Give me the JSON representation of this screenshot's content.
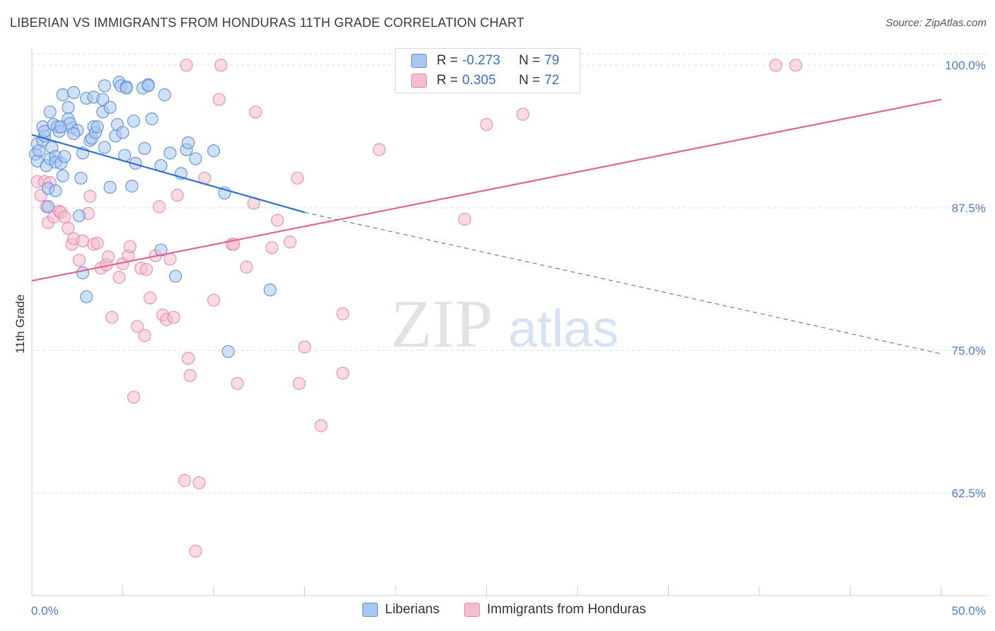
{
  "title": "LIBERIAN VS IMMIGRANTS FROM HONDURAS 11TH GRADE CORRELATION CHART",
  "source": "Source: ZipAtlas.com",
  "watermark": {
    "zip": "ZIP",
    "atlas": "atlas"
  },
  "colors": {
    "blue_fill": "#a9c6f0",
    "blue_stroke": "#5b8fd6",
    "blue_line": "#2e6fd0",
    "pink_fill": "#f6bcd0",
    "pink_stroke": "#e58aa9",
    "pink_line": "#e0668f",
    "grid": "#dddddd",
    "tick_label": "#4a7cc9"
  },
  "legend": {
    "rows": [
      {
        "r_label": "R = ",
        "r_value": "-0.273",
        "n_label": "N = ",
        "n_value": "79",
        "series": "blue"
      },
      {
        "r_label": "R = ",
        "r_value": "0.305",
        "n_label": "N = ",
        "n_value": "72",
        "series": "pink"
      }
    ]
  },
  "bottom_legend": [
    "Liberians",
    "Immigrants from Honduras"
  ],
  "chart_data": {
    "type": "scatter",
    "xlabel": "",
    "ylabel": "11th Grade",
    "xlim": [
      0,
      50
    ],
    "ylim": [
      53.5,
      101.5
    ],
    "x_tick_labels": [
      "0.0%",
      "50.0%"
    ],
    "y_ticks": [
      62.5,
      75.0,
      87.5,
      100.0
    ],
    "y_tick_labels": [
      "62.5%",
      "75.0%",
      "87.5%",
      "100.0%"
    ],
    "grid": true,
    "series": [
      {
        "name": "Liberians",
        "color": "blue",
        "trend": {
          "x0": 0,
          "y0": 93.9,
          "x1": 15.0,
          "y1": 87.1,
          "dash_to_x": 50,
          "dash_to_y": 74.7
        },
        "points": [
          [
            0.2,
            92.2
          ],
          [
            0.3,
            93.1
          ],
          [
            0.3,
            91.6
          ],
          [
            0.4,
            92.5
          ],
          [
            0.6,
            93.4
          ],
          [
            0.6,
            94.6
          ],
          [
            0.7,
            93.8
          ],
          [
            0.7,
            94.2
          ],
          [
            0.8,
            91.2
          ],
          [
            0.9,
            89.2
          ],
          [
            0.9,
            87.6
          ],
          [
            1.0,
            91.8
          ],
          [
            1.0,
            95.9
          ],
          [
            1.1,
            92.8
          ],
          [
            1.2,
            94.8
          ],
          [
            1.3,
            92.0
          ],
          [
            1.3,
            91.5
          ],
          [
            1.3,
            89.0
          ],
          [
            1.4,
            94.6
          ],
          [
            1.5,
            94.2
          ],
          [
            1.6,
            91.4
          ],
          [
            1.6,
            94.6
          ],
          [
            1.7,
            90.3
          ],
          [
            1.7,
            97.4
          ],
          [
            1.8,
            92.0
          ],
          [
            2.0,
            95.3
          ],
          [
            2.2,
            94.5
          ],
          [
            2.3,
            97.6
          ],
          [
            2.0,
            96.3
          ],
          [
            2.1,
            94.9
          ],
          [
            2.6,
            86.8
          ],
          [
            2.5,
            94.3
          ],
          [
            2.3,
            94.0
          ],
          [
            2.7,
            90.1
          ],
          [
            2.8,
            92.3
          ],
          [
            2.8,
            81.8
          ],
          [
            3.0,
            97.1
          ],
          [
            3.0,
            79.7
          ],
          [
            3.2,
            93.4
          ],
          [
            3.3,
            93.6
          ],
          [
            3.4,
            97.2
          ],
          [
            3.4,
            94.6
          ],
          [
            3.5,
            94.1
          ],
          [
            3.6,
            94.6
          ],
          [
            3.9,
            97.0
          ],
          [
            3.9,
            95.9
          ],
          [
            4.0,
            98.2
          ],
          [
            4.0,
            92.8
          ],
          [
            4.3,
            89.3
          ],
          [
            4.3,
            96.3
          ],
          [
            4.6,
            93.8
          ],
          [
            4.7,
            94.8
          ],
          [
            4.8,
            98.5
          ],
          [
            4.9,
            98.2
          ],
          [
            5.0,
            94.1
          ],
          [
            5.1,
            92.1
          ],
          [
            5.2,
            98.1
          ],
          [
            5.2,
            98.0
          ],
          [
            5.5,
            89.4
          ],
          [
            5.6,
            95.1
          ],
          [
            5.7,
            91.4
          ],
          [
            6.1,
            98.0
          ],
          [
            6.4,
            98.3
          ],
          [
            6.4,
            98.2
          ],
          [
            6.6,
            95.3
          ],
          [
            7.1,
            91.2
          ],
          [
            7.3,
            97.4
          ],
          [
            7.1,
            83.8
          ],
          [
            7.9,
            81.5
          ],
          [
            7.6,
            92.3
          ],
          [
            8.2,
            90.5
          ],
          [
            8.5,
            92.6
          ],
          [
            8.6,
            93.2
          ],
          [
            9.0,
            91.8
          ],
          [
            10.0,
            92.5
          ],
          [
            10.6,
            88.8
          ],
          [
            10.8,
            74.9
          ],
          [
            13.1,
            80.3
          ],
          [
            6.2,
            92.7
          ]
        ]
      },
      {
        "name": "Immigrants from Honduras",
        "color": "pink",
        "trend": {
          "x0": 0,
          "y0": 81.1,
          "x1": 50,
          "y1": 97.0
        },
        "points": [
          [
            0.3,
            89.8
          ],
          [
            0.5,
            88.6
          ],
          [
            0.7,
            89.8
          ],
          [
            0.9,
            86.2
          ],
          [
            1.0,
            89.7
          ],
          [
            1.2,
            86.7
          ],
          [
            1.5,
            87.2
          ],
          [
            1.6,
            87.1
          ],
          [
            1.8,
            86.7
          ],
          [
            2.0,
            85.7
          ],
          [
            2.2,
            84.3
          ],
          [
            2.3,
            84.8
          ],
          [
            2.6,
            82.9
          ],
          [
            2.8,
            84.6
          ],
          [
            3.1,
            87.0
          ],
          [
            3.2,
            88.5
          ],
          [
            3.4,
            84.3
          ],
          [
            3.6,
            84.4
          ],
          [
            3.8,
            82.2
          ],
          [
            4.1,
            82.5
          ],
          [
            4.2,
            83.2
          ],
          [
            4.4,
            77.9
          ],
          [
            4.8,
            81.4
          ],
          [
            5.0,
            82.6
          ],
          [
            5.3,
            83.3
          ],
          [
            5.4,
            84.1
          ],
          [
            5.6,
            70.9
          ],
          [
            5.8,
            77.1
          ],
          [
            6.0,
            82.2
          ],
          [
            6.2,
            76.3
          ],
          [
            6.3,
            82.1
          ],
          [
            6.5,
            79.6
          ],
          [
            6.8,
            83.3
          ],
          [
            7.0,
            87.6
          ],
          [
            7.2,
            78.1
          ],
          [
            7.4,
            77.7
          ],
          [
            7.6,
            83.0
          ],
          [
            7.8,
            77.9
          ],
          [
            8.0,
            88.6
          ],
          [
            8.6,
            74.3
          ],
          [
            8.7,
            72.8
          ],
          [
            8.4,
            63.6
          ],
          [
            8.5,
            100.0
          ],
          [
            9.2,
            63.4
          ],
          [
            9.5,
            90.1
          ],
          [
            9.0,
            57.4
          ],
          [
            10.0,
            79.4
          ],
          [
            10.3,
            97.0
          ],
          [
            10.4,
            100.0
          ],
          [
            11.0,
            84.3
          ],
          [
            11.1,
            84.3
          ],
          [
            11.3,
            72.1
          ],
          [
            11.8,
            82.3
          ],
          [
            12.2,
            87.9
          ],
          [
            12.3,
            95.9
          ],
          [
            13.2,
            84.0
          ],
          [
            13.5,
            86.4
          ],
          [
            14.2,
            84.5
          ],
          [
            14.6,
            90.1
          ],
          [
            14.7,
            72.1
          ],
          [
            15.0,
            75.3
          ],
          [
            15.9,
            68.4
          ],
          [
            17.1,
            78.2
          ],
          [
            17.1,
            73.0
          ],
          [
            19.1,
            92.6
          ],
          [
            23.8,
            86.5
          ],
          [
            25.0,
            94.8
          ],
          [
            27.0,
            95.7
          ],
          [
            28.3,
            100.0
          ],
          [
            40.9,
            100.0
          ],
          [
            42.0,
            100.0
          ],
          [
            0.8,
            87.6
          ]
        ]
      }
    ]
  }
}
